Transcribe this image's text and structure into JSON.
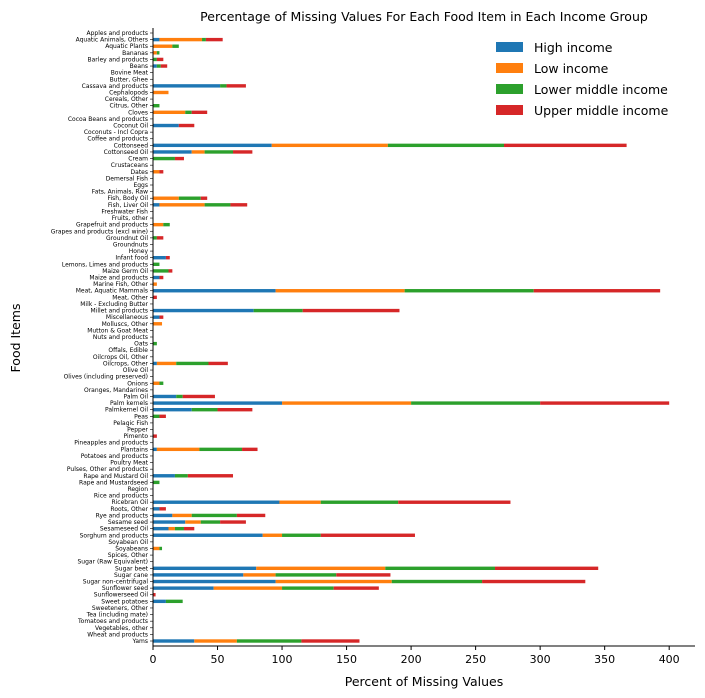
{
  "chart_data": {
    "type": "bar",
    "orientation": "horizontal",
    "stacked": true,
    "title": "Percentage of Missing Values For Each Food Item in Each Income Group",
    "xlabel": "Percent of Missing Values",
    "ylabel": "Food Items",
    "xlim": [
      0,
      420
    ],
    "xticks": [
      0,
      50,
      100,
      150,
      200,
      250,
      300,
      350,
      400
    ],
    "grid": false,
    "legend_position": "top-right",
    "categories": [
      "Apples and products",
      "Aquatic Animals, Others",
      "Aquatic Plants",
      "Bananas",
      "Barley and products",
      "Beans",
      "Bovine Meat",
      "Butter, Ghee",
      "Cassava and products",
      "Cephalopods",
      "Cereals, Other",
      "Citrus, Other",
      "Cloves",
      "Cocoa Beans and products",
      "Coconut Oil",
      "Coconuts - Incl Copra",
      "Coffee and products",
      "Cottonseed",
      "Cottonseed Oil",
      "Cream",
      "Crustaceans",
      "Dates",
      "Demersal Fish",
      "Eggs",
      "Fats, Animals, Raw",
      "Fish, Body Oil",
      "Fish, Liver Oil",
      "Freshwater Fish",
      "Fruits, other",
      "Grapefruit and products",
      "Grapes and products (excl wine)",
      "Groundnut Oil",
      "Groundnuts",
      "Honey",
      "Infant food",
      "Lemons, Limes and products",
      "Maize Germ Oil",
      "Maize and products",
      "Marine Fish, Other",
      "Meat, Aquatic Mammals",
      "Meat, Other",
      "Milk - Excluding Butter",
      "Millet and products",
      "Miscellaneous",
      "Molluscs, Other",
      "Mutton & Goat Meat",
      "Nuts and products",
      "Oats",
      "Offals, Edible",
      "Oilcrops Oil, Other",
      "Oilcrops, Other",
      "Olive Oil",
      "Olives (including preserved)",
      "Onions",
      "Oranges, Mandarines",
      "Palm Oil",
      "Palm kernels",
      "Palmkernel Oil",
      "Peas",
      "Pelagic Fish",
      "Pepper",
      "Pimento",
      "Pineapples and products",
      "Plantains",
      "Potatoes and products",
      "Poultry Meat",
      "Pulses, Other and products",
      "Rape and Mustard Oil",
      "Rape and Mustardseed",
      "Region",
      "Rice and products",
      "Ricebran Oil",
      "Roots, Other",
      "Rye and products",
      "Sesame seed",
      "Sesameseed Oil",
      "Sorghum and products",
      "Soyabean Oil",
      "Soyabeans",
      "Spices, Other",
      "Sugar (Raw Equivalent)",
      "Sugar beet",
      "Sugar cane",
      "Sugar non-centrifugal",
      "Sunflower seed",
      "Sunflowerseed Oil",
      "Sweet potatoes",
      "Sweeteners, Other",
      "Tea (including mate)",
      "Tomatoes and products",
      "Vegetables, other",
      "Wheat and products",
      "Yams"
    ],
    "series": [
      {
        "name": "High income",
        "color": "#1f77b4",
        "values": [
          0,
          5,
          0,
          0,
          0,
          3,
          0,
          0,
          52,
          0,
          0,
          0,
          0,
          0,
          20,
          0,
          0,
          92,
          30,
          0,
          0,
          0,
          0,
          0,
          0,
          0,
          5,
          0,
          0,
          0,
          0,
          0,
          0,
          0,
          10,
          0,
          0,
          5,
          0,
          95,
          0,
          0,
          78,
          5,
          0,
          0,
          0,
          0,
          0,
          0,
          3,
          0,
          0,
          0,
          0,
          18,
          100,
          30,
          0,
          0,
          0,
          0,
          0,
          3,
          0,
          0,
          0,
          17,
          0,
          0,
          0,
          98,
          5,
          15,
          25,
          12,
          85,
          0,
          0,
          0,
          0,
          80,
          70,
          95,
          47,
          0,
          10,
          0,
          0,
          0,
          0,
          0,
          32
        ]
      },
      {
        "name": "Low income",
        "color": "#ff7f0e",
        "values": [
          0,
          33,
          15,
          3,
          0,
          0,
          0,
          0,
          0,
          12,
          0,
          0,
          25,
          0,
          0,
          0,
          0,
          90,
          10,
          0,
          0,
          5,
          0,
          0,
          0,
          20,
          35,
          0,
          0,
          8,
          0,
          0,
          0,
          0,
          0,
          0,
          0,
          0,
          3,
          100,
          0,
          0,
          0,
          0,
          7,
          0,
          0,
          0,
          0,
          0,
          15,
          0,
          0,
          5,
          0,
          0,
          100,
          0,
          0,
          0,
          0,
          0,
          0,
          33,
          0,
          0,
          0,
          0,
          0,
          0,
          0,
          32,
          0,
          15,
          12,
          5,
          15,
          0,
          5,
          0,
          0,
          100,
          25,
          90,
          53,
          0,
          0,
          0,
          0,
          0,
          0,
          0,
          33
        ]
      },
      {
        "name": "Lower middle income",
        "color": "#2ca02c",
        "values": [
          0,
          3,
          5,
          2,
          3,
          3,
          0,
          0,
          5,
          0,
          0,
          5,
          5,
          0,
          0,
          0,
          0,
          90,
          22,
          17,
          0,
          0,
          0,
          0,
          0,
          17,
          20,
          0,
          0,
          5,
          0,
          3,
          0,
          0,
          0,
          5,
          12,
          0,
          0,
          100,
          0,
          0,
          38,
          0,
          0,
          0,
          0,
          3,
          0,
          0,
          25,
          0,
          0,
          3,
          0,
          5,
          100,
          20,
          5,
          0,
          0,
          0,
          0,
          33,
          0,
          0,
          0,
          10,
          5,
          0,
          0,
          60,
          0,
          35,
          15,
          7,
          30,
          0,
          2,
          0,
          0,
          85,
          47,
          70,
          40,
          0,
          13,
          0,
          0,
          0,
          0,
          0,
          50
        ]
      },
      {
        "name": "Upper middle income",
        "color": "#d62728",
        "values": [
          0,
          13,
          0,
          0,
          5,
          5,
          0,
          0,
          15,
          0,
          0,
          0,
          12,
          0,
          12,
          0,
          0,
          95,
          15,
          7,
          0,
          3,
          0,
          0,
          0,
          5,
          13,
          0,
          0,
          0,
          0,
          5,
          0,
          0,
          3,
          0,
          3,
          3,
          0,
          98,
          3,
          0,
          75,
          3,
          0,
          0,
          0,
          0,
          0,
          0,
          15,
          0,
          0,
          0,
          0,
          25,
          100,
          27,
          5,
          0,
          0,
          3,
          0,
          12,
          0,
          0,
          0,
          35,
          0,
          0,
          0,
          87,
          5,
          22,
          20,
          8,
          73,
          0,
          0,
          0,
          0,
          80,
          42,
          80,
          35,
          2,
          0,
          0,
          0,
          0,
          0,
          0,
          45
        ]
      }
    ]
  }
}
